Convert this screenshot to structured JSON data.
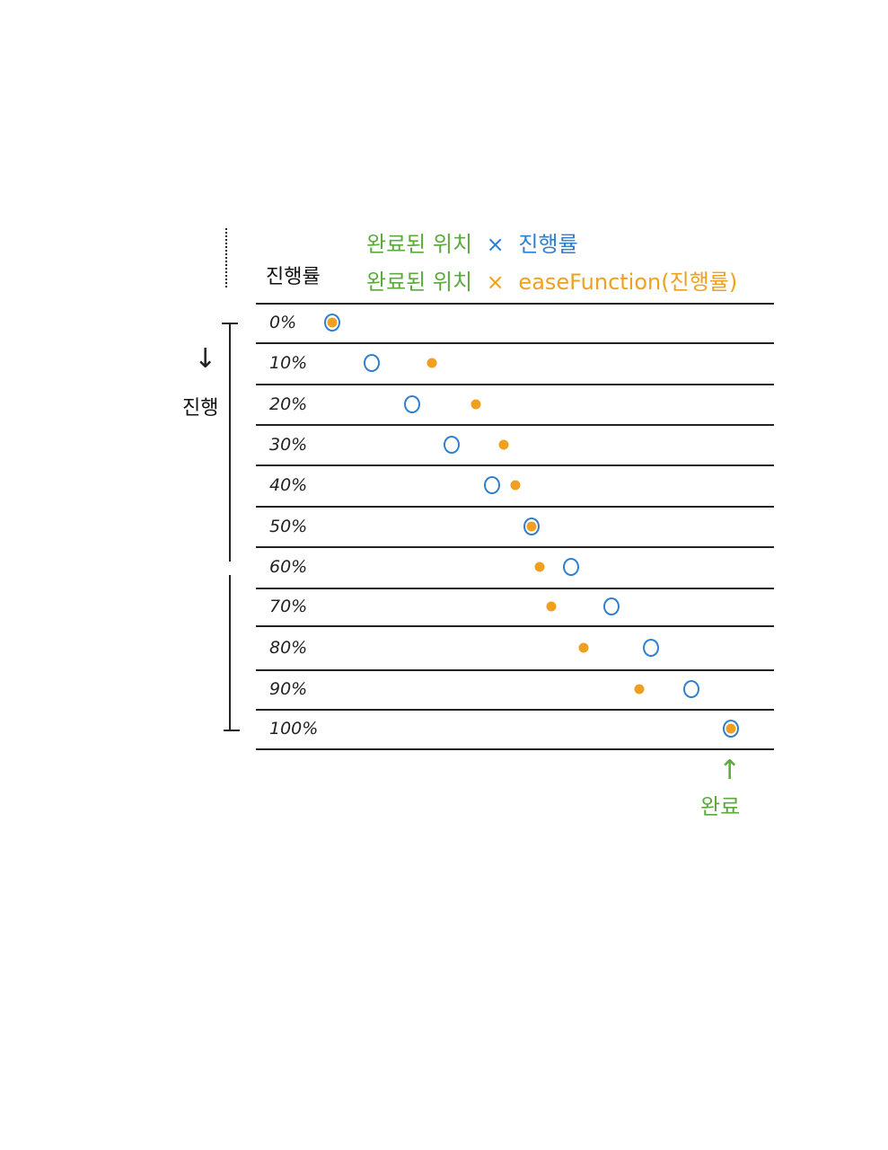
{
  "header": {
    "column_label": "진행률",
    "formula_linear": {
      "part1": "완료된 위치",
      "op": "×",
      "part2": "진행률"
    },
    "formula_eased": {
      "part1": "완료된 위치",
      "op": "×",
      "part2": "easeFunction(진행률)"
    }
  },
  "side": {
    "progress_label": "진행",
    "arrow": "↓"
  },
  "footer": {
    "done_label": "완료",
    "arrow": "↑"
  },
  "colors": {
    "green": "#5aaa3c",
    "blue": "#2f7fcf",
    "orange": "#f0a020",
    "ink": "#222222"
  },
  "rows": [
    {
      "label": "0%",
      "progress": 0,
      "eased": 0
    },
    {
      "label": "10%",
      "progress": 0.1,
      "eased": 0.25
    },
    {
      "label": "20%",
      "progress": 0.2,
      "eased": 0.36
    },
    {
      "label": "30%",
      "progress": 0.3,
      "eased": 0.43
    },
    {
      "label": "40%",
      "progress": 0.4,
      "eased": 0.46
    },
    {
      "label": "50%",
      "progress": 0.5,
      "eased": 0.5
    },
    {
      "label": "60%",
      "progress": 0.6,
      "eased": 0.52
    },
    {
      "label": "70%",
      "progress": 0.7,
      "eased": 0.55
    },
    {
      "label": "80%",
      "progress": 0.8,
      "eased": 0.63
    },
    {
      "label": "90%",
      "progress": 0.9,
      "eased": 0.77
    },
    {
      "label": "100%",
      "progress": 1,
      "eased": 1
    }
  ]
}
